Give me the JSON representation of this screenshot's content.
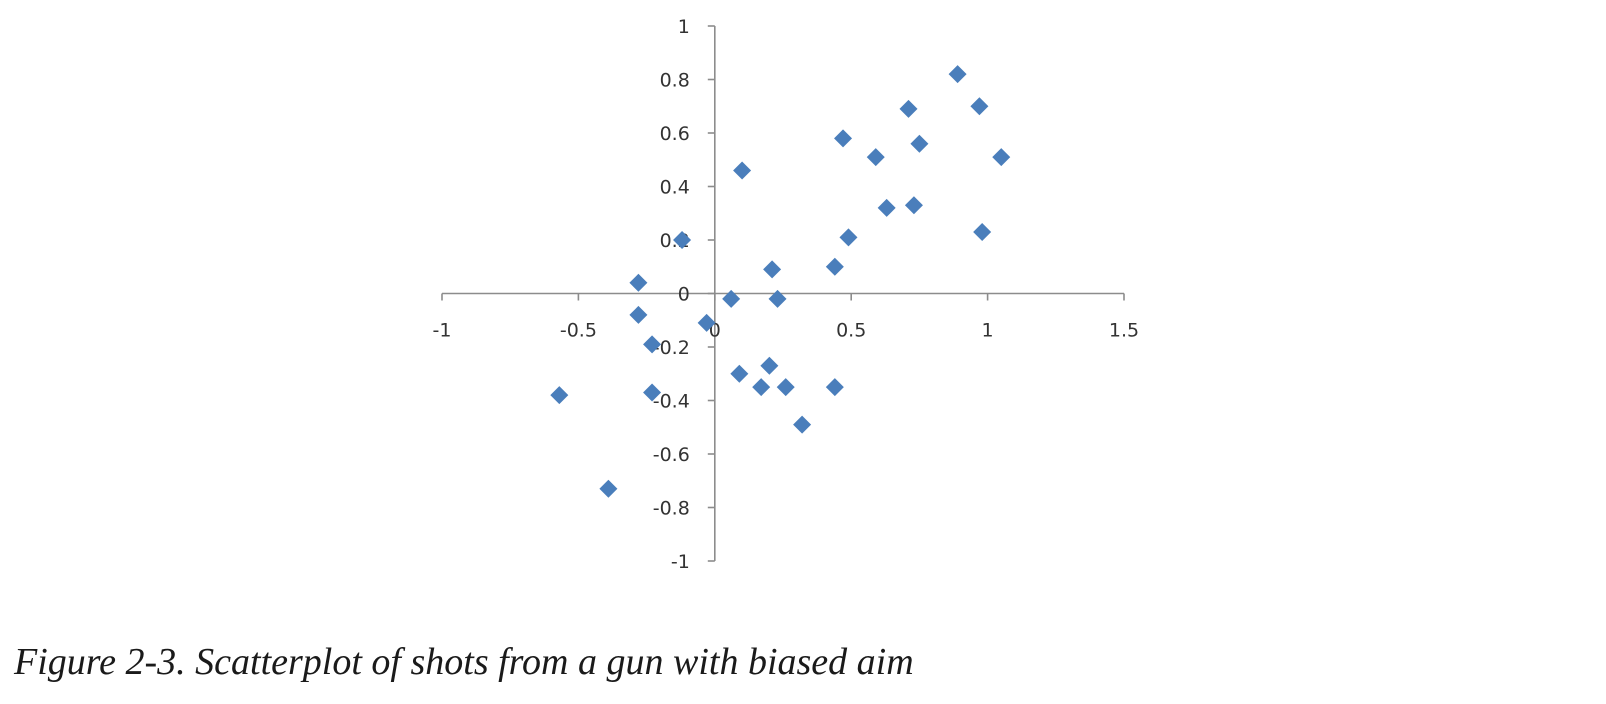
{
  "caption": "Figure 2-3. Scatterplot of shots from a gun with biased aim",
  "colors": {
    "marker": "#4a7ebb",
    "axis": "#8c8c8c",
    "tick_text": "#333333"
  },
  "chart_data": {
    "type": "scatter",
    "title": "",
    "xlabel": "",
    "ylabel": "",
    "xlim": [
      -1,
      1.5
    ],
    "ylim": [
      -1,
      1
    ],
    "x_ticks": [
      -1,
      -0.5,
      0,
      0.5,
      1,
      1.5
    ],
    "y_ticks": [
      -1,
      -0.8,
      -0.6,
      -0.4,
      -0.2,
      0,
      0.2,
      0.4,
      0.6,
      0.8,
      1
    ],
    "x_tick_labels": [
      "-1",
      "-0.5",
      "0",
      "0.5",
      "1",
      "1.5"
    ],
    "y_tick_labels": [
      "-1",
      "-0.8",
      "-0.6",
      "-0.4",
      "-0.2",
      "0",
      "0.2",
      "0.4",
      "0.6",
      "0.8",
      "1"
    ],
    "marker": "diamond",
    "grid": false,
    "legend": "none",
    "series": [
      {
        "points": [
          {
            "x": 0.89,
            "y": 0.82
          },
          {
            "x": 0.97,
            "y": 0.7
          },
          {
            "x": 0.71,
            "y": 0.69
          },
          {
            "x": 0.47,
            "y": 0.58
          },
          {
            "x": 0.75,
            "y": 0.56
          },
          {
            "x": 0.59,
            "y": 0.51
          },
          {
            "x": 1.05,
            "y": 0.51
          },
          {
            "x": 0.1,
            "y": 0.46
          },
          {
            "x": 0.63,
            "y": 0.32
          },
          {
            "x": 0.73,
            "y": 0.33
          },
          {
            "x": 0.98,
            "y": 0.23
          },
          {
            "x": 0.49,
            "y": 0.21
          },
          {
            "x": -0.12,
            "y": 0.2
          },
          {
            "x": 0.21,
            "y": 0.09
          },
          {
            "x": 0.44,
            "y": 0.1
          },
          {
            "x": -0.28,
            "y": 0.04
          },
          {
            "x": 0.06,
            "y": -0.02
          },
          {
            "x": 0.23,
            "y": -0.02
          },
          {
            "x": -0.28,
            "y": -0.08
          },
          {
            "x": -0.03,
            "y": -0.11
          },
          {
            "x": -0.23,
            "y": -0.19
          },
          {
            "x": 0.2,
            "y": -0.27
          },
          {
            "x": 0.09,
            "y": -0.3
          },
          {
            "x": 0.17,
            "y": -0.35
          },
          {
            "x": 0.26,
            "y": -0.35
          },
          {
            "x": 0.44,
            "y": -0.35
          },
          {
            "x": -0.23,
            "y": -0.37
          },
          {
            "x": -0.57,
            "y": -0.38
          },
          {
            "x": 0.32,
            "y": -0.49
          },
          {
            "x": -0.39,
            "y": -0.73
          }
        ]
      }
    ]
  }
}
